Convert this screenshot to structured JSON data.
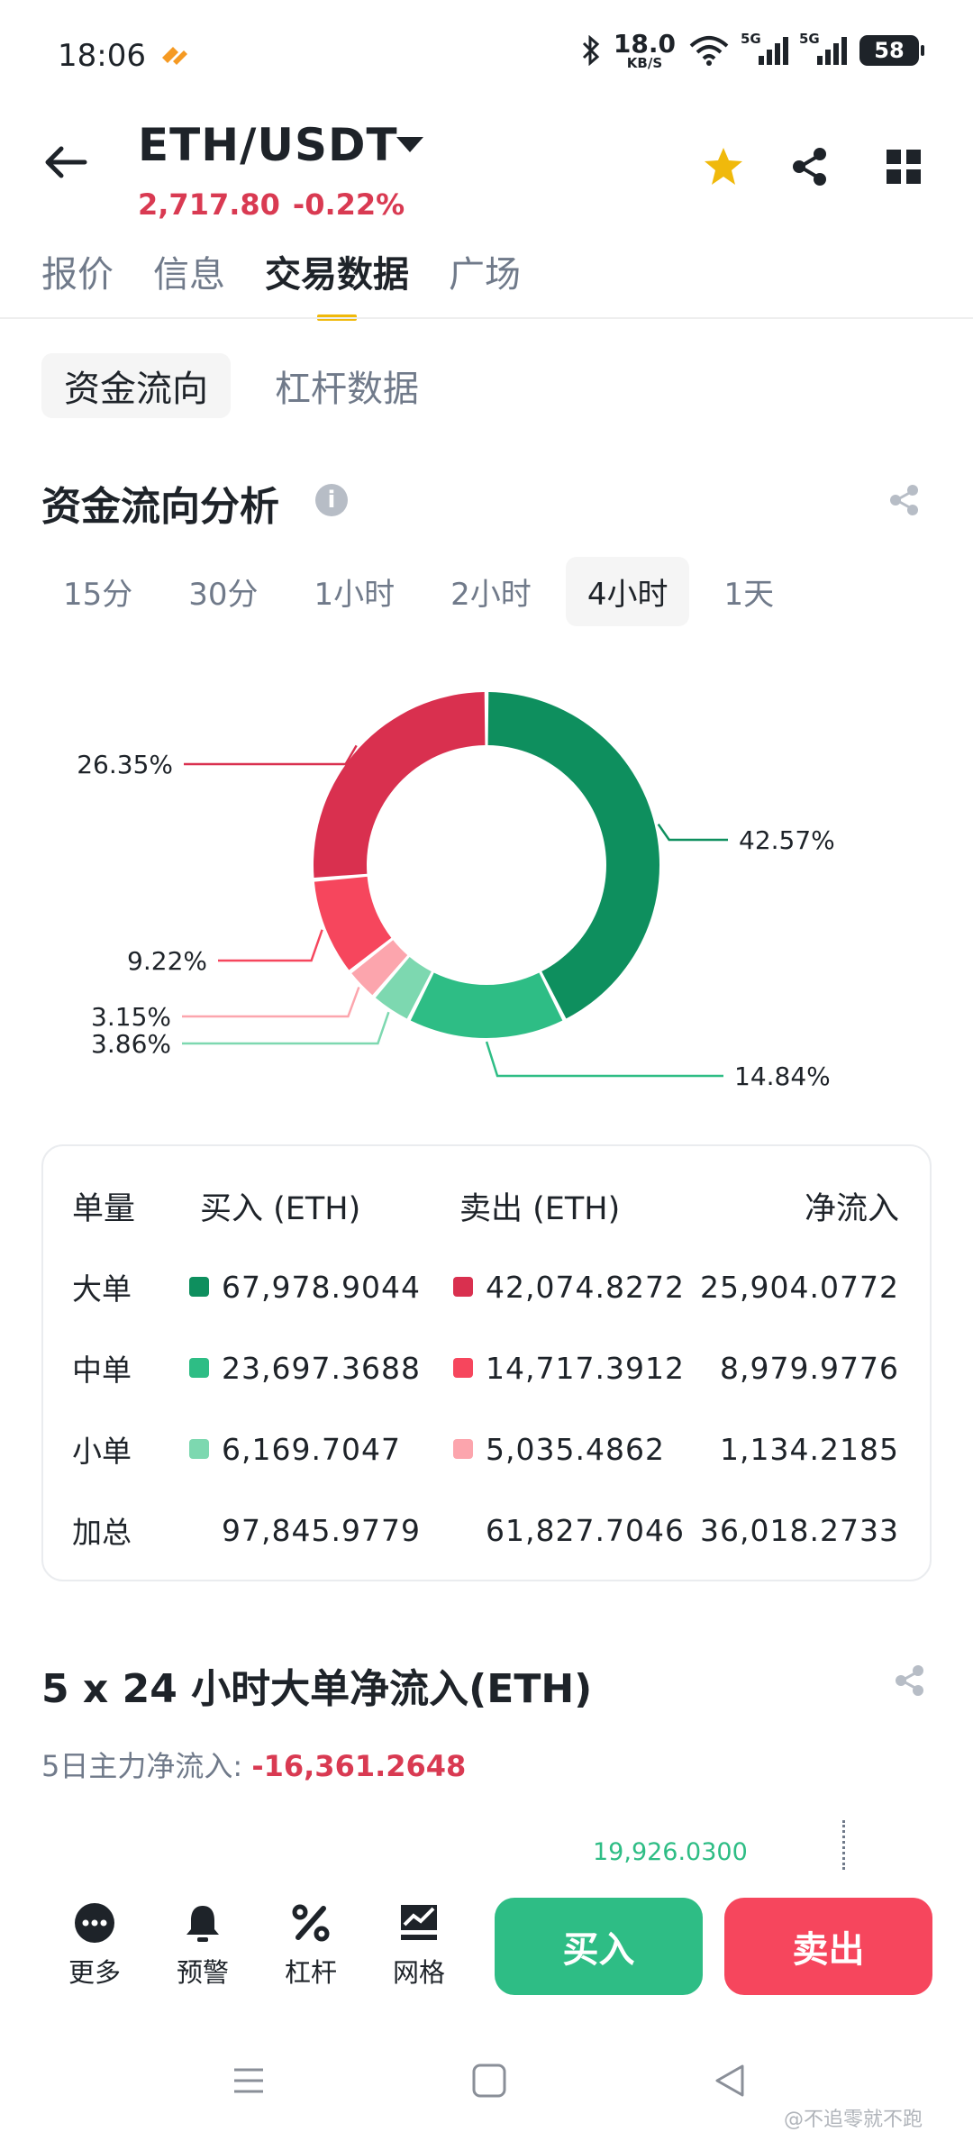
{
  "status_bar": {
    "time": "18:06",
    "net_speed": "18.0",
    "net_unit": "KB/S",
    "signal1": "5G",
    "signal2": "5G",
    "battery": "58"
  },
  "header": {
    "pair": "ETH/USDT",
    "price": "2,717.80",
    "change": "-0.22%",
    "icons": [
      "back-arrow-icon",
      "star-icon",
      "share-icon",
      "grid-icon"
    ]
  },
  "main_tabs": [
    {
      "label": "报价"
    },
    {
      "label": "信息"
    },
    {
      "label": "交易数据"
    },
    {
      "label": "广场"
    }
  ],
  "sub_tabs": [
    {
      "label": "资金流向"
    },
    {
      "label": "杠杆数据"
    }
  ],
  "section1": {
    "title": "资金流向分析",
    "info_icon": "i"
  },
  "time_tabs": [
    {
      "label": "15分"
    },
    {
      "label": "30分"
    },
    {
      "label": "1小时"
    },
    {
      "label": "2小时"
    },
    {
      "label": "4小时"
    },
    {
      "label": "1天"
    }
  ],
  "colors": {
    "buy_large": "#0e8f5e",
    "buy_medium": "#2ebd85",
    "buy_small": "#7dd8b0",
    "sell_large": "#d9304f",
    "sell_medium": "#f6465d",
    "sell_small": "#fca5ad",
    "accent": "#f0b90b"
  },
  "chart_data": {
    "type": "pie",
    "donut": true,
    "slices": [
      {
        "label": "42.57%",
        "value": 42.57,
        "color": "#0e8f5e"
      },
      {
        "label": "14.84%",
        "value": 14.84,
        "color": "#2ebd85"
      },
      {
        "label": "3.86%",
        "value": 3.86,
        "color": "#7dd8b0"
      },
      {
        "label": "3.15%",
        "value": 3.15,
        "color": "#fca5ad"
      },
      {
        "label": "9.22%",
        "value": 9.22,
        "color": "#f6465d"
      },
      {
        "label": "26.35%",
        "value": 26.35,
        "color": "#d9304f"
      }
    ]
  },
  "table": {
    "headers": {
      "label": "单量",
      "buy": "买入 (ETH)",
      "sell": "卖出 (ETH)",
      "net": "净流入"
    },
    "rows": [
      {
        "label": "大单",
        "buy": "67,978.9044",
        "sell": "42,074.8272",
        "net": "25,904.0772"
      },
      {
        "label": "中单",
        "buy": "23,697.3688",
        "sell": "14,717.3912",
        "net": "8,979.9776"
      },
      {
        "label": "小单",
        "buy": "6,169.7047",
        "sell": "5,035.4862",
        "net": "1,134.2185"
      },
      {
        "label": "加总",
        "buy": "97,845.9779",
        "sell": "61,827.7046",
        "net": "36,018.2733"
      }
    ]
  },
  "section2": {
    "title": "5 x 24 小时大单净流入(ETH)",
    "sub_label": "5日主力净流入:",
    "sub_value": "-16,361.2648",
    "peak_value": "19,926.0300"
  },
  "bottom_bar": {
    "items": [
      {
        "label": "更多",
        "icon": "more-icon"
      },
      {
        "label": "预警",
        "icon": "bell-icon"
      },
      {
        "label": "杠杆",
        "icon": "leverage-icon"
      },
      {
        "label": "网格",
        "icon": "grid-trading-icon"
      }
    ],
    "buy_label": "买入",
    "sell_label": "卖出"
  },
  "watermark": "@不追零就不跑"
}
